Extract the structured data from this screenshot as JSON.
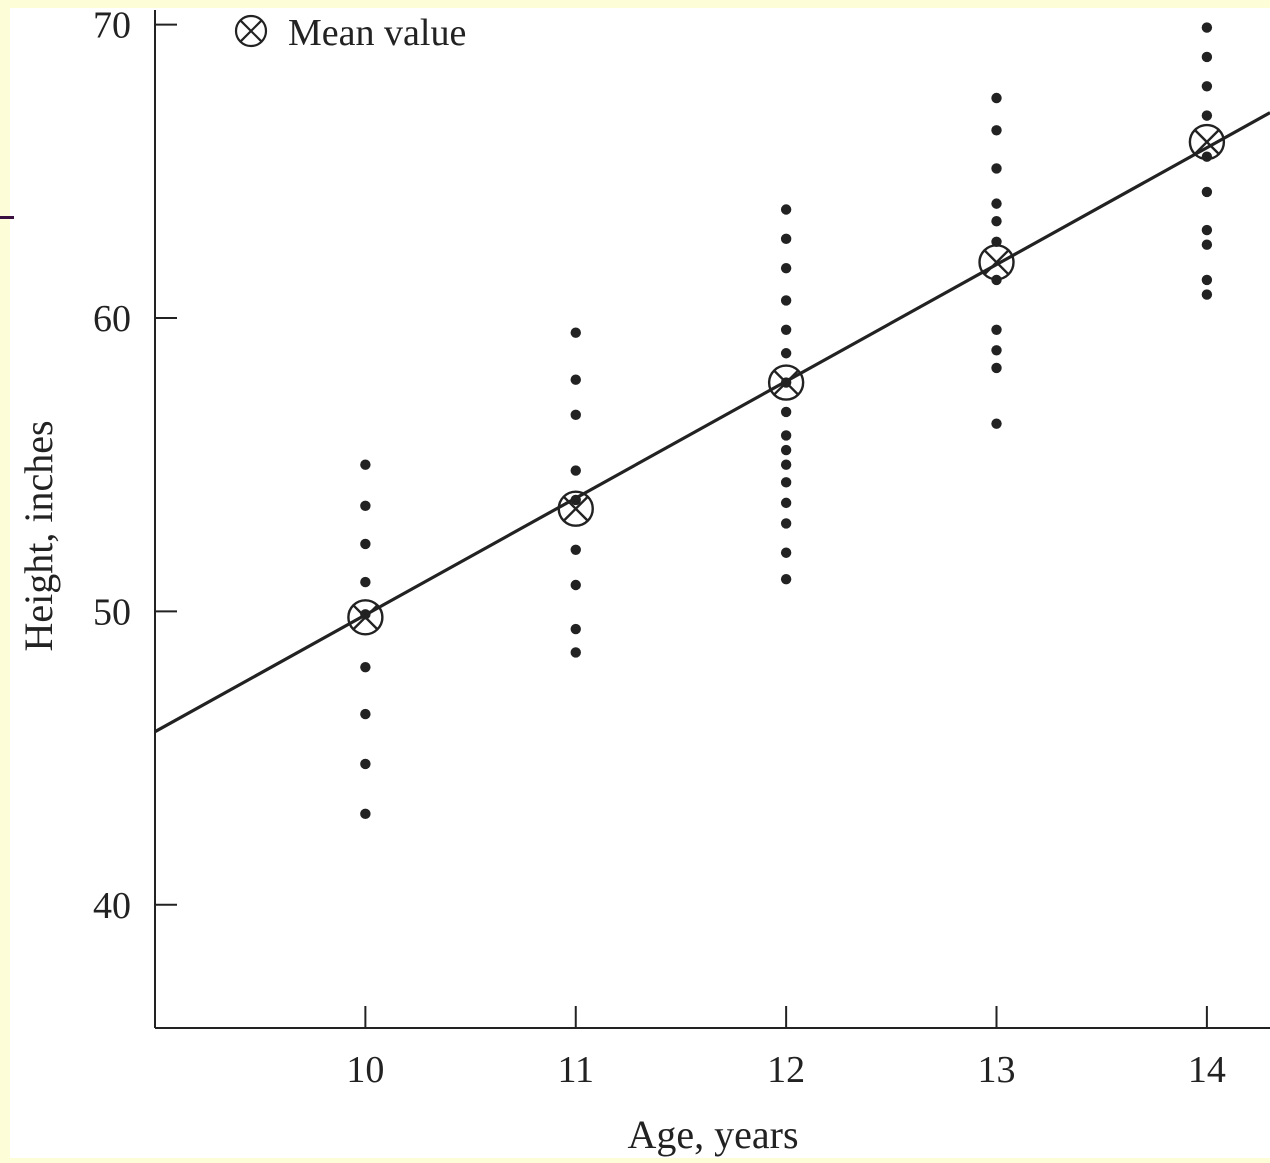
{
  "colors": {
    "background": "#fdfdd7",
    "plot": "#ffffff",
    "ink": "#222222",
    "accent": "#3a1040"
  },
  "legend": {
    "icon": "circled-x-icon",
    "label": "Mean value"
  },
  "chart_data": {
    "type": "scatter",
    "title": "",
    "xlabel": "Age, years",
    "ylabel": "Height, inches",
    "xlim": [
      9,
      14.3
    ],
    "ylim": [
      35.8,
      70.5
    ],
    "xticks": [
      10,
      11,
      12,
      13,
      14
    ],
    "yticks": [
      40,
      50,
      60,
      70
    ],
    "grid": false,
    "legend_position": "top-left",
    "series": [
      {
        "points": [
          [
            10,
            55.0
          ],
          [
            10,
            53.6
          ],
          [
            10,
            52.3
          ],
          [
            10,
            51.0
          ],
          [
            10,
            49.9
          ],
          [
            10,
            48.1
          ],
          [
            10,
            46.5
          ],
          [
            10,
            44.8
          ],
          [
            10,
            43.1
          ],
          [
            11,
            59.5
          ],
          [
            11,
            57.9
          ],
          [
            11,
            56.7
          ],
          [
            11,
            54.8
          ],
          [
            11,
            53.8
          ],
          [
            11,
            52.1
          ],
          [
            11,
            50.9
          ],
          [
            11,
            49.4
          ],
          [
            11,
            48.6
          ],
          [
            12,
            63.7
          ],
          [
            12,
            62.7
          ],
          [
            12,
            61.7
          ],
          [
            12,
            60.6
          ],
          [
            12,
            59.6
          ],
          [
            12,
            58.8
          ],
          [
            12,
            57.8
          ],
          [
            12,
            56.8
          ],
          [
            12,
            56.0
          ],
          [
            12,
            55.5
          ],
          [
            12,
            55.0
          ],
          [
            12,
            54.4
          ],
          [
            12,
            53.7
          ],
          [
            12,
            53.0
          ],
          [
            12,
            52.0
          ],
          [
            12,
            51.1
          ],
          [
            13,
            67.5
          ],
          [
            13,
            66.4
          ],
          [
            13,
            65.1
          ],
          [
            13,
            63.9
          ],
          [
            13,
            63.3
          ],
          [
            13,
            62.6
          ],
          [
            13,
            61.3
          ],
          [
            13,
            59.6
          ],
          [
            13,
            58.9
          ],
          [
            13,
            58.3
          ],
          [
            13,
            56.4
          ],
          [
            14,
            69.9
          ],
          [
            14,
            68.9
          ],
          [
            14,
            67.9
          ],
          [
            14,
            66.9
          ],
          [
            14,
            65.5
          ],
          [
            14,
            64.3
          ],
          [
            14,
            63.0
          ],
          [
            14,
            62.5
          ],
          [
            14,
            61.3
          ],
          [
            14,
            60.8
          ]
        ]
      },
      {
        "name": "Mean value",
        "marker": "circled-x",
        "points": [
          [
            10,
            49.8
          ],
          [
            11,
            53.5
          ],
          [
            12,
            57.8
          ],
          [
            13,
            61.9
          ],
          [
            14,
            66.0
          ]
        ]
      }
    ],
    "fit_line": {
      "x": [
        9,
        14.3
      ],
      "y": [
        45.9,
        67.0
      ]
    }
  }
}
